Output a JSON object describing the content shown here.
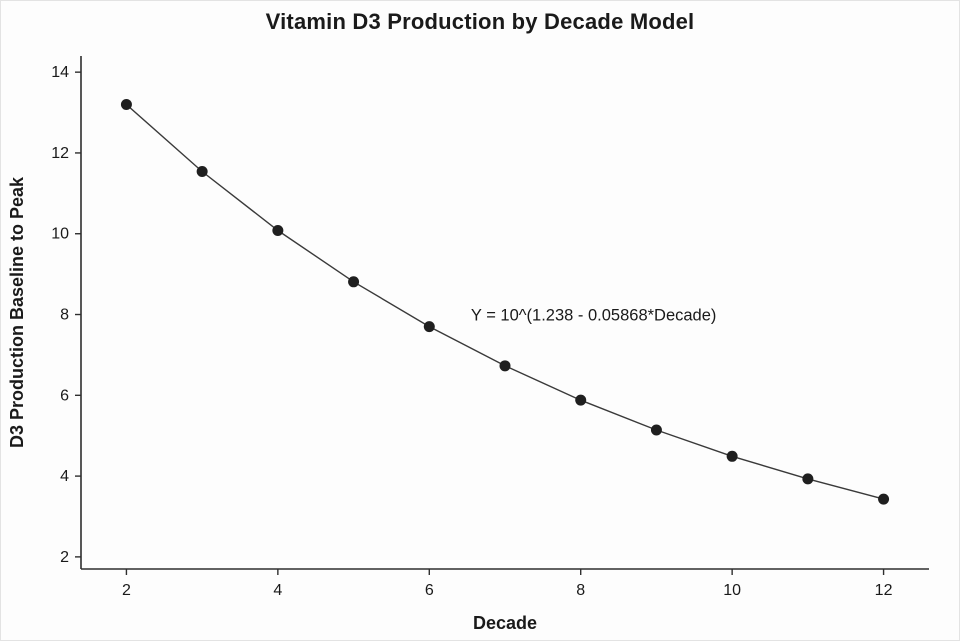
{
  "chart_data": {
    "type": "line",
    "title": "Vitamin D3 Production by Decade Model",
    "xlabel": "Decade",
    "ylabel": "D3 Production Baseline to Peak",
    "annotation": "Y = 10^(1.238 - 0.05868*Decade)",
    "x": [
      2,
      3,
      4,
      5,
      6,
      7,
      8,
      9,
      10,
      11,
      12
    ],
    "y": [
      13.2,
      11.54,
      10.08,
      8.81,
      7.7,
      6.73,
      5.88,
      5.14,
      4.49,
      3.93,
      3.43
    ],
    "xticks": [
      2,
      4,
      6,
      8,
      10,
      12
    ],
    "yticks": [
      2,
      4,
      6,
      8,
      10,
      12,
      14
    ],
    "xlim": [
      1.4,
      12.6
    ],
    "ylim": [
      1.7,
      14.4
    ],
    "annotation_pos": {
      "x": 6.55,
      "y": 7.85
    },
    "legend": "none",
    "grid": false,
    "colors": {
      "point": "#1f1f1f",
      "line": "#3a3a3a",
      "axis": "#2e2e2e",
      "text": "#1a1a1a"
    }
  }
}
